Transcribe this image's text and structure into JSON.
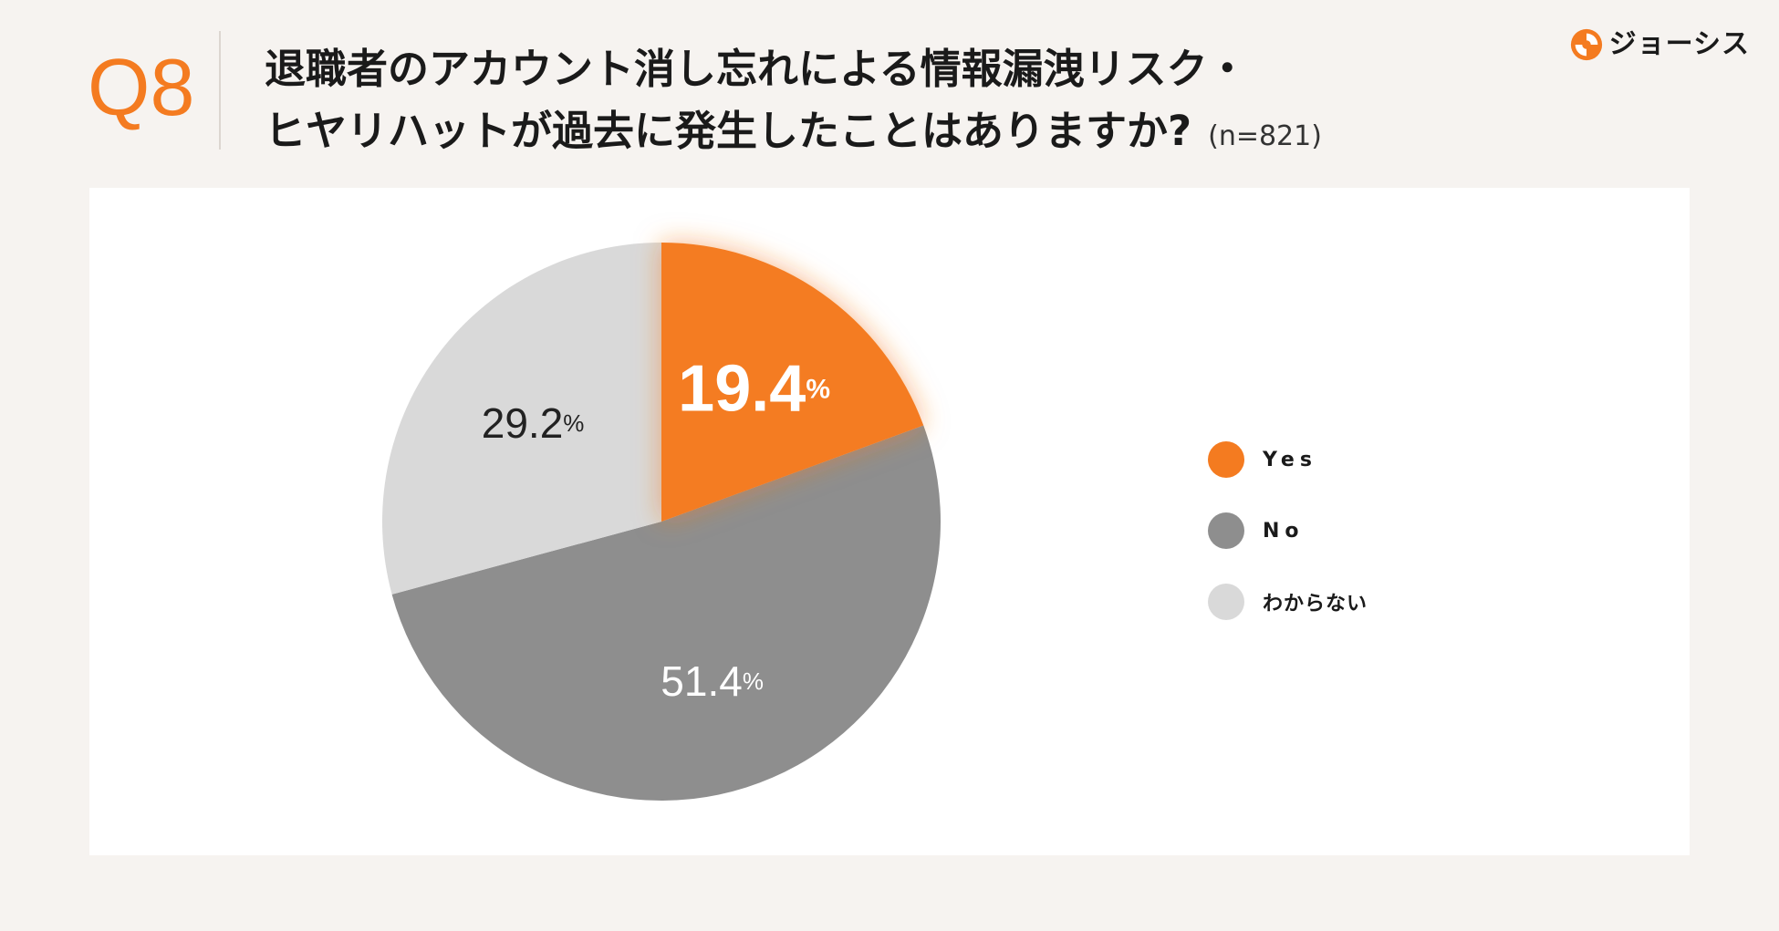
{
  "header": {
    "q_label": "Q8",
    "title_line1": "退職者のアカウント消し忘れによる情報漏洩リスク・",
    "title_line2": "ヒヤリハットが過去に発生したことはありますか?",
    "sample_size": "(n=821)"
  },
  "brand": {
    "name": "ジョーシス",
    "icon": "joshys-logo-icon"
  },
  "colors": {
    "accent": "#f47b20",
    "no": "#8e8e8e",
    "unknown": "#d9d9d9"
  },
  "chart_data": {
    "type": "pie",
    "unit": "%",
    "slices": [
      {
        "label": "Yes",
        "value": 19.4,
        "color": "#f47b20"
      },
      {
        "label": "No",
        "value": 51.4,
        "color": "#8e8e8e"
      },
      {
        "label": "わからない",
        "value": 29.2,
        "color": "#d9d9d9"
      }
    ],
    "start_angle_deg": 0,
    "direction": "clockwise",
    "highlighted_slice": "Yes",
    "legend_position": "right"
  }
}
